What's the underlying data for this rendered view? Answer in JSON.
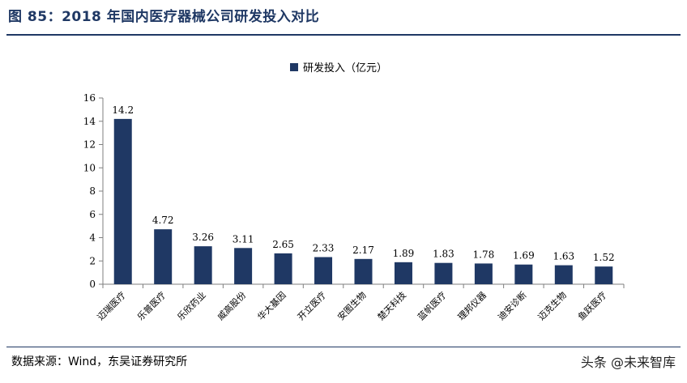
{
  "header": {
    "title": "图 85：2018 年国内医疗器械公司研发投入对比"
  },
  "footer": {
    "source": "数据来源：Wind，东吴证券研究所",
    "watermark": "头条 @未来智库"
  },
  "colors": {
    "bar": "#1f3864",
    "rule": "#1f3864",
    "axis": "#7f7f7f"
  },
  "chart_data": {
    "type": "bar",
    "title": "",
    "xlabel": "",
    "ylabel": "",
    "ylim": [
      0,
      16
    ],
    "yticks": [
      0,
      2,
      4,
      6,
      8,
      10,
      12,
      14,
      16
    ],
    "legend": {
      "position": "top-center"
    },
    "grid": false,
    "categories": [
      "迈瑞医疗",
      "乐普医疗",
      "乐欣药业",
      "威高股份",
      "华大基因",
      "开立医疗",
      "安图生物",
      "楚天科技",
      "蓝帆医疗",
      "理邦仪器",
      "迪安诊断",
      "迈克生物",
      "鱼跃医疗"
    ],
    "series": [
      {
        "name": "研发投入（亿元）",
        "values": [
          14.2,
          4.72,
          3.26,
          3.11,
          2.65,
          2.33,
          2.17,
          1.89,
          1.83,
          1.78,
          1.69,
          1.63,
          1.52
        ],
        "labels": [
          "14.2",
          "4.72",
          "3.26",
          "3.11",
          "2.65",
          "2.33",
          "2.17",
          "1.89",
          "1.83",
          "1.78",
          "1.69",
          "1.63",
          "1.52"
        ]
      }
    ]
  }
}
